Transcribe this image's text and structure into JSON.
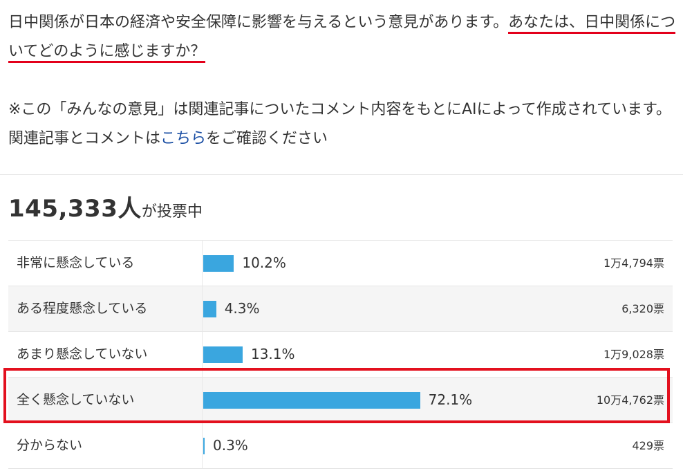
{
  "intro": {
    "question_plain": "日中関係が日本の経済や安全保障に影響を与えるという意見があります。",
    "question_underlined": "あなたは、日中関係についてどのように感じますか？",
    "note_before_link": "※この「みんなの意見」は関連記事についたコメント内容をもとにAIによって作成されています。関連記事とコメントは",
    "note_link": "こちら",
    "note_after_link": "をご確認ください"
  },
  "total": {
    "count": "145,333人",
    "suffix": "が投票中"
  },
  "results": [
    {
      "label": "非常に懸念している",
      "percent_text": "10.2%",
      "percent": 10.2,
      "votes": "1万4,794票"
    },
    {
      "label": "ある程度懸念している",
      "percent_text": "4.3%",
      "percent": 4.3,
      "votes": "6,320票"
    },
    {
      "label": "あまり懸念していない",
      "percent_text": "13.1%",
      "percent": 13.1,
      "votes": "1万9,028票"
    },
    {
      "label": "全く懸念していない",
      "percent_text": "72.1%",
      "percent": 72.1,
      "votes": "10万4,762票"
    },
    {
      "label": "分からない",
      "percent_text": "0.3%",
      "percent": 0.3,
      "votes": "429票"
    }
  ],
  "colors": {
    "bar": "#3aa6df",
    "highlight": "#e3101e",
    "link": "#1a4ea3"
  }
}
